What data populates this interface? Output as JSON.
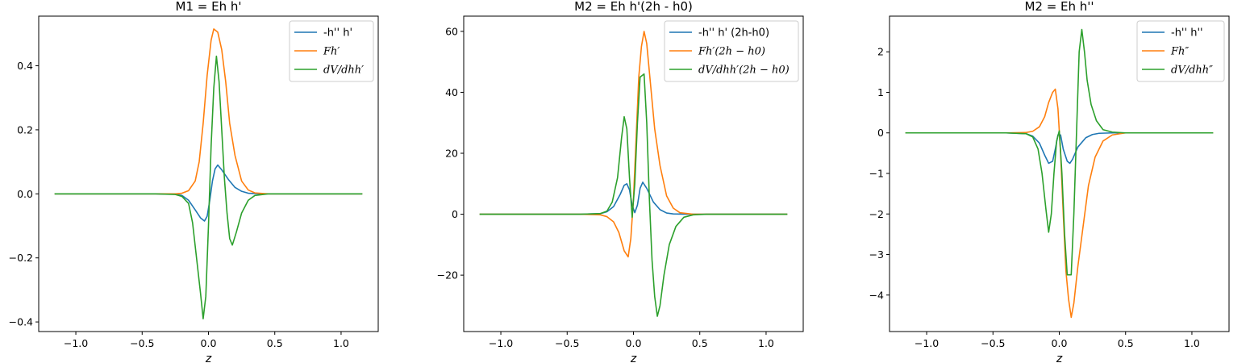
{
  "colors": {
    "blue": "#1f77b4",
    "orange": "#ff7f0e",
    "green": "#2ca02c"
  },
  "chart_data": [
    {
      "type": "line",
      "title": "M1 = Eh h'",
      "xlabel": "z",
      "ylabel": "",
      "xlim": [
        -1.28,
        1.28
      ],
      "ylim": [
        -0.43,
        0.555
      ],
      "xticks": [
        -1.0,
        -0.5,
        0.0,
        0.5,
        1.0
      ],
      "xtick_labels": [
        "−1.0",
        "−0.5",
        "0.0",
        "0.5",
        "1.0"
      ],
      "yticks": [
        -0.4,
        -0.2,
        0.0,
        0.2,
        0.4
      ],
      "ytick_labels": [
        "−0.4",
        "−0.2",
        "0.0",
        "0.2",
        "0.4"
      ],
      "grid": false,
      "legend": "upper-right",
      "series": [
        {
          "name": "-h'' h'",
          "color": "#1f77b4",
          "points": [
            [
              -1.16,
              0
            ],
            [
              -0.4,
              0
            ],
            [
              -0.25,
              -0.001
            ],
            [
              -0.2,
              -0.005
            ],
            [
              -0.15,
              -0.02
            ],
            [
              -0.1,
              -0.05
            ],
            [
              -0.06,
              -0.075
            ],
            [
              -0.03,
              -0.085
            ],
            [
              -0.01,
              -0.07
            ],
            [
              0.01,
              -0.02
            ],
            [
              0.03,
              0.04
            ],
            [
              0.05,
              0.078
            ],
            [
              0.07,
              0.09
            ],
            [
              0.1,
              0.075
            ],
            [
              0.15,
              0.045
            ],
            [
              0.2,
              0.02
            ],
            [
              0.25,
              0.008
            ],
            [
              0.3,
              0.002
            ],
            [
              0.4,
              0
            ],
            [
              1.16,
              0
            ]
          ]
        },
        {
          "name": "Fh′",
          "color": "#ff7f0e",
          "points": [
            [
              -1.16,
              0
            ],
            [
              -0.4,
              0
            ],
            [
              -0.25,
              0
            ],
            [
              -0.2,
              0.002
            ],
            [
              -0.15,
              0.01
            ],
            [
              -0.1,
              0.04
            ],
            [
              -0.07,
              0.1
            ],
            [
              -0.04,
              0.22
            ],
            [
              -0.01,
              0.37
            ],
            [
              0.02,
              0.48
            ],
            [
              0.04,
              0.515
            ],
            [
              0.07,
              0.505
            ],
            [
              0.1,
              0.45
            ],
            [
              0.13,
              0.35
            ],
            [
              0.16,
              0.22
            ],
            [
              0.2,
              0.12
            ],
            [
              0.25,
              0.04
            ],
            [
              0.3,
              0.012
            ],
            [
              0.35,
              0.003
            ],
            [
              0.45,
              0
            ],
            [
              1.16,
              0
            ]
          ]
        },
        {
          "name": "dV/dhh′",
          "color": "#2ca02c",
          "points": [
            [
              -1.16,
              0
            ],
            [
              -0.4,
              0
            ],
            [
              -0.25,
              -0.002
            ],
            [
              -0.2,
              -0.008
            ],
            [
              -0.15,
              -0.03
            ],
            [
              -0.12,
              -0.09
            ],
            [
              -0.09,
              -0.2
            ],
            [
              -0.06,
              -0.31
            ],
            [
              -0.04,
              -0.39
            ],
            [
              -0.02,
              -0.32
            ],
            [
              0.0,
              -0.1
            ],
            [
              0.02,
              0.15
            ],
            [
              0.04,
              0.33
            ],
            [
              0.06,
              0.43
            ],
            [
              0.08,
              0.35
            ],
            [
              0.1,
              0.2
            ],
            [
              0.12,
              0.05
            ],
            [
              0.14,
              -0.06
            ],
            [
              0.16,
              -0.14
            ],
            [
              0.18,
              -0.16
            ],
            [
              0.21,
              -0.12
            ],
            [
              0.25,
              -0.06
            ],
            [
              0.3,
              -0.02
            ],
            [
              0.35,
              -0.005
            ],
            [
              0.45,
              0
            ],
            [
              1.16,
              0
            ]
          ]
        }
      ]
    },
    {
      "type": "line",
      "title": "M2 = Eh h'(2h - h0)",
      "xlabel": "z",
      "ylabel": "",
      "xlim": [
        -1.28,
        1.28
      ],
      "ylim": [
        -38.5,
        65
      ],
      "xticks": [
        -1.0,
        -0.5,
        0.0,
        0.5,
        1.0
      ],
      "xtick_labels": [
        "−1.0",
        "−0.5",
        "0.0",
        "0.5",
        "1.0"
      ],
      "yticks": [
        -20,
        0,
        20,
        40,
        60
      ],
      "ytick_labels": [
        "−20",
        "0",
        "20",
        "40",
        "60"
      ],
      "grid": false,
      "legend": "upper-right",
      "series": [
        {
          "name": "-h'' h' (2h-h0)",
          "color": "#1f77b4",
          "points": [
            [
              -1.16,
              0
            ],
            [
              -0.4,
              0
            ],
            [
              -0.25,
              0.2
            ],
            [
              -0.2,
              0.8
            ],
            [
              -0.15,
              2.5
            ],
            [
              -0.1,
              6.5
            ],
            [
              -0.07,
              9.5
            ],
            [
              -0.05,
              10
            ],
            [
              -0.03,
              8
            ],
            [
              -0.01,
              3
            ],
            [
              0.01,
              0.5
            ],
            [
              0.03,
              3
            ],
            [
              0.05,
              8.5
            ],
            [
              0.07,
              10.5
            ],
            [
              0.1,
              8.5
            ],
            [
              0.15,
              4
            ],
            [
              0.2,
              1.5
            ],
            [
              0.25,
              0.4
            ],
            [
              0.3,
              0.1
            ],
            [
              0.4,
              0
            ],
            [
              1.16,
              0
            ]
          ]
        },
        {
          "name": "Fh′(2h − h0)",
          "color": "#ff7f0e",
          "points": [
            [
              -1.16,
              0
            ],
            [
              -0.4,
              0
            ],
            [
              -0.25,
              -0.2
            ],
            [
              -0.2,
              -0.8
            ],
            [
              -0.15,
              -2.5
            ],
            [
              -0.11,
              -6
            ],
            [
              -0.07,
              -12
            ],
            [
              -0.04,
              -14
            ],
            [
              -0.02,
              -8
            ],
            [
              0.0,
              5
            ],
            [
              0.02,
              25
            ],
            [
              0.04,
              45
            ],
            [
              0.06,
              55
            ],
            [
              0.08,
              60
            ],
            [
              0.1,
              56
            ],
            [
              0.13,
              42
            ],
            [
              0.16,
              28
            ],
            [
              0.2,
              16
            ],
            [
              0.25,
              6
            ],
            [
              0.3,
              2
            ],
            [
              0.35,
              0.5
            ],
            [
              0.45,
              0
            ],
            [
              1.16,
              0
            ]
          ]
        },
        {
          "name": "dV/dhh′(2h − h0)",
          "color": "#2ca02c",
          "points": [
            [
              -1.16,
              0
            ],
            [
              -0.4,
              0
            ],
            [
              -0.25,
              0.2
            ],
            [
              -0.2,
              1
            ],
            [
              -0.16,
              4
            ],
            [
              -0.12,
              12
            ],
            [
              -0.09,
              25
            ],
            [
              -0.07,
              32
            ],
            [
              -0.05,
              28
            ],
            [
              -0.03,
              12
            ],
            [
              -0.01,
              -1
            ],
            [
              0.01,
              10
            ],
            [
              0.03,
              30
            ],
            [
              0.05,
              45
            ],
            [
              0.08,
              46
            ],
            [
              0.1,
              30
            ],
            [
              0.12,
              5
            ],
            [
              0.14,
              -15
            ],
            [
              0.16,
              -27
            ],
            [
              0.18,
              -33.5
            ],
            [
              0.2,
              -30
            ],
            [
              0.23,
              -20
            ],
            [
              0.27,
              -10
            ],
            [
              0.32,
              -4
            ],
            [
              0.38,
              -1
            ],
            [
              0.45,
              -0.2
            ],
            [
              0.55,
              0
            ],
            [
              1.16,
              0
            ]
          ]
        }
      ]
    },
    {
      "type": "line",
      "title": "M2 = Eh h''",
      "xlabel": "z",
      "ylabel": "",
      "xlim": [
        -1.28,
        1.28
      ],
      "ylim": [
        -4.9,
        2.88
      ],
      "xticks": [
        -1.0,
        -0.5,
        0.0,
        0.5,
        1.0
      ],
      "xtick_labels": [
        "−1.0",
        "−0.5",
        "0.0",
        "0.5",
        "1.0"
      ],
      "yticks": [
        -4,
        -3,
        -2,
        -1,
        0,
        1,
        2
      ],
      "ytick_labels": [
        "−4",
        "−3",
        "−2",
        "−1",
        "0",
        "1",
        "2"
      ],
      "grid": false,
      "legend": "upper-right",
      "series": [
        {
          "name": "-h'' h''",
          "color": "#1f77b4",
          "points": [
            [
              -1.16,
              0
            ],
            [
              -0.4,
              0
            ],
            [
              -0.25,
              -0.02
            ],
            [
              -0.2,
              -0.08
            ],
            [
              -0.15,
              -0.25
            ],
            [
              -0.11,
              -0.55
            ],
            [
              -0.08,
              -0.75
            ],
            [
              -0.05,
              -0.7
            ],
            [
              -0.03,
              -0.4
            ],
            [
              -0.01,
              -0.05
            ],
            [
              0.01,
              -0.05
            ],
            [
              0.03,
              -0.4
            ],
            [
              0.06,
              -0.7
            ],
            [
              0.08,
              -0.75
            ],
            [
              0.1,
              -0.65
            ],
            [
              0.14,
              -0.35
            ],
            [
              0.2,
              -0.12
            ],
            [
              0.25,
              -0.04
            ],
            [
              0.3,
              -0.01
            ],
            [
              0.4,
              0
            ],
            [
              1.16,
              0
            ]
          ]
        },
        {
          "name": "Fh″",
          "color": "#ff7f0e",
          "points": [
            [
              -1.16,
              0
            ],
            [
              -0.4,
              0
            ],
            [
              -0.25,
              0.01
            ],
            [
              -0.2,
              0.04
            ],
            [
              -0.15,
              0.15
            ],
            [
              -0.11,
              0.4
            ],
            [
              -0.08,
              0.75
            ],
            [
              -0.05,
              1.0
            ],
            [
              -0.03,
              1.08
            ],
            [
              -0.01,
              0.6
            ],
            [
              0.01,
              -0.5
            ],
            [
              0.03,
              -2.0
            ],
            [
              0.05,
              -3.4
            ],
            [
              0.07,
              -4.1
            ],
            [
              0.09,
              -4.55
            ],
            [
              0.11,
              -4.2
            ],
            [
              0.14,
              -3.3
            ],
            [
              0.18,
              -2.3
            ],
            [
              0.22,
              -1.3
            ],
            [
              0.27,
              -0.6
            ],
            [
              0.33,
              -0.2
            ],
            [
              0.4,
              -0.05
            ],
            [
              0.5,
              0
            ],
            [
              1.16,
              0
            ]
          ]
        },
        {
          "name": "dV/dhh″",
          "color": "#2ca02c",
          "points": [
            [
              -1.16,
              0
            ],
            [
              -0.4,
              0
            ],
            [
              -0.25,
              -0.02
            ],
            [
              -0.2,
              -0.1
            ],
            [
              -0.16,
              -0.4
            ],
            [
              -0.13,
              -1.0
            ],
            [
              -0.1,
              -1.9
            ],
            [
              -0.08,
              -2.45
            ],
            [
              -0.06,
              -2.0
            ],
            [
              -0.04,
              -1.0
            ],
            [
              -0.02,
              -0.2
            ],
            [
              0.0,
              0.05
            ],
            [
              0.02,
              -1.0
            ],
            [
              0.04,
              -2.5
            ],
            [
              0.06,
              -3.5
            ],
            [
              0.09,
              -3.5
            ],
            [
              0.11,
              -2.0
            ],
            [
              0.13,
              0
            ],
            [
              0.15,
              2.0
            ],
            [
              0.17,
              2.55
            ],
            [
              0.19,
              2.0
            ],
            [
              0.21,
              1.3
            ],
            [
              0.24,
              0.7
            ],
            [
              0.28,
              0.3
            ],
            [
              0.33,
              0.08
            ],
            [
              0.4,
              0.02
            ],
            [
              0.5,
              0
            ],
            [
              1.16,
              0
            ]
          ]
        }
      ]
    }
  ]
}
